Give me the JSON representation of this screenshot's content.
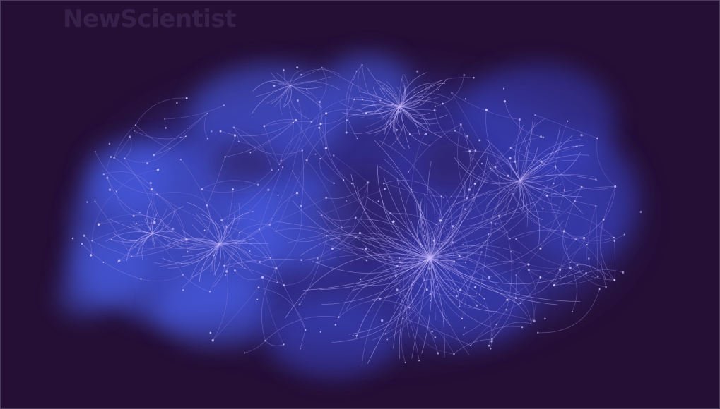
{
  "image": {
    "watermark": "NewScientist",
    "colors": {
      "background": "#250f35",
      "glow_core": "#4a5ee8",
      "glow_mid": "#3a44c8",
      "edge_light": "#c8b8ff",
      "edge_soft": "#9a8ae8",
      "node": "#d6ccff",
      "watermark": "#3a2550"
    }
  }
}
